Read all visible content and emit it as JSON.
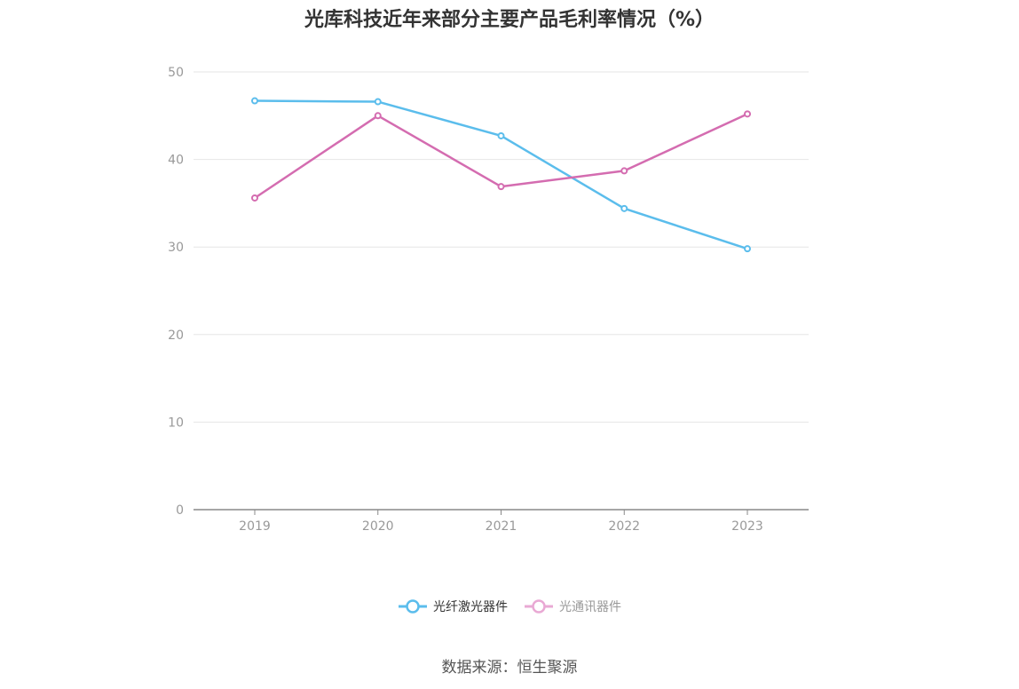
{
  "title": "光库科技近年来部分主要产品毛利率情况（%）",
  "source": "数据来源：恒生聚源",
  "colors": {
    "series1": "#5bbdec",
    "series2": "#d46cb0",
    "series2_legend": "#e9a9d4",
    "grid": "#e6e6e6",
    "axis": "#888888",
    "tick_text": "#999999"
  },
  "chart_data": {
    "type": "line",
    "title": "光库科技近年来部分主要产品毛利率情况（%）",
    "x": [
      "2019",
      "2020",
      "2021",
      "2022",
      "2023"
    ],
    "ylim": [
      0,
      50
    ],
    "yticks": [
      0,
      10,
      20,
      30,
      40,
      50
    ],
    "grid": true,
    "legend_position": "bottom",
    "series": [
      {
        "name": "光纤激光器件",
        "values": [
          46.7,
          46.6,
          42.7,
          34.4,
          29.8
        ]
      },
      {
        "name": "光通讯器件",
        "values": [
          35.6,
          45.0,
          36.9,
          38.7,
          45.2
        ]
      }
    ]
  },
  "legend": [
    {
      "label": "光纤激光器件"
    },
    {
      "label": "光通讯器件"
    }
  ]
}
